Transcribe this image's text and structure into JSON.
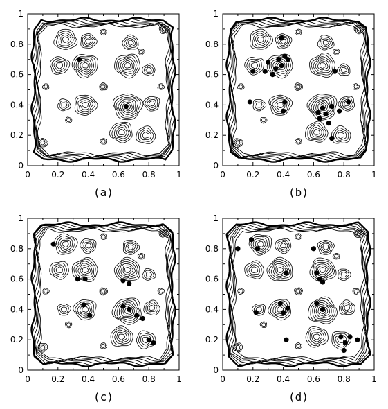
{
  "chart_data": [
    {
      "type": "contour",
      "caption": "(a)",
      "xlim": [
        0,
        1
      ],
      "ylim": [
        0,
        1
      ],
      "xticks": [
        "0",
        "0.2",
        "0.4",
        "0.6",
        "0.8",
        "1"
      ],
      "yticks": [
        "0",
        "0.2",
        "0.4",
        "0.6",
        "0.8",
        "1"
      ],
      "points": [
        {
          "x": 0.34,
          "y": 0.7
        },
        {
          "x": 0.65,
          "y": 0.39
        }
      ]
    },
    {
      "type": "contour",
      "caption": "(b)",
      "xlim": [
        0,
        1
      ],
      "ylim": [
        0,
        1
      ],
      "xticks": [
        "0",
        "0.2",
        "0.4",
        "0.6",
        "0.8",
        "1"
      ],
      "yticks": [
        "0",
        "0.2",
        "0.4",
        "0.6",
        "0.8",
        "1"
      ],
      "points": [
        {
          "x": 0.2,
          "y": 0.62
        },
        {
          "x": 0.28,
          "y": 0.62
        },
        {
          "x": 0.3,
          "y": 0.68
        },
        {
          "x": 0.33,
          "y": 0.6
        },
        {
          "x": 0.35,
          "y": 0.64
        },
        {
          "x": 0.37,
          "y": 0.7
        },
        {
          "x": 0.39,
          "y": 0.66
        },
        {
          "x": 0.39,
          "y": 0.84
        },
        {
          "x": 0.41,
          "y": 0.72
        },
        {
          "x": 0.43,
          "y": 0.7
        },
        {
          "x": 0.18,
          "y": 0.42
        },
        {
          "x": 0.41,
          "y": 0.42
        },
        {
          "x": 0.4,
          "y": 0.36
        },
        {
          "x": 0.63,
          "y": 0.35
        },
        {
          "x": 0.64,
          "y": 0.31
        },
        {
          "x": 0.66,
          "y": 0.38
        },
        {
          "x": 0.68,
          "y": 0.34
        },
        {
          "x": 0.7,
          "y": 0.28
        },
        {
          "x": 0.72,
          "y": 0.39
        },
        {
          "x": 0.77,
          "y": 0.36
        },
        {
          "x": 0.72,
          "y": 0.18
        },
        {
          "x": 0.83,
          "y": 0.42
        },
        {
          "x": 0.74,
          "y": 0.62
        }
      ]
    },
    {
      "type": "contour",
      "caption": "(c)",
      "xlim": [
        0,
        1
      ],
      "ylim": [
        0,
        1
      ],
      "xticks": [
        "0",
        "0.2",
        "0.4",
        "0.6",
        "0.8",
        "1"
      ],
      "yticks": [
        "0",
        "0.2",
        "0.4",
        "0.6",
        "0.8",
        "1"
      ],
      "points": [
        {
          "x": 0.17,
          "y": 0.83
        },
        {
          "x": 0.33,
          "y": 0.6
        },
        {
          "x": 0.38,
          "y": 0.6
        },
        {
          "x": 0.63,
          "y": 0.59
        },
        {
          "x": 0.67,
          "y": 0.57
        },
        {
          "x": 0.37,
          "y": 0.43
        },
        {
          "x": 0.41,
          "y": 0.36
        },
        {
          "x": 0.63,
          "y": 0.42
        },
        {
          "x": 0.67,
          "y": 0.4
        },
        {
          "x": 0.72,
          "y": 0.36
        },
        {
          "x": 0.76,
          "y": 0.34
        },
        {
          "x": 0.8,
          "y": 0.2
        },
        {
          "x": 0.83,
          "y": 0.18
        }
      ]
    },
    {
      "type": "contour",
      "caption": "(d)",
      "xlim": [
        0,
        1
      ],
      "ylim": [
        0,
        1
      ],
      "xticks": [
        "0",
        "0.2",
        "0.4",
        "0.6",
        "0.8",
        "1"
      ],
      "yticks": [
        "0",
        "0.2",
        "0.4",
        "0.6",
        "0.8",
        "1"
      ],
      "points": [
        {
          "x": 0.1,
          "y": 0.8
        },
        {
          "x": 0.19,
          "y": 0.86
        },
        {
          "x": 0.23,
          "y": 0.8
        },
        {
          "x": 0.42,
          "y": 0.64
        },
        {
          "x": 0.64,
          "y": 0.6
        },
        {
          "x": 0.66,
          "y": 0.58
        },
        {
          "x": 0.62,
          "y": 0.64
        },
        {
          "x": 0.6,
          "y": 0.8
        },
        {
          "x": 0.38,
          "y": 0.44
        },
        {
          "x": 0.4,
          "y": 0.38
        },
        {
          "x": 0.43,
          "y": 0.41
        },
        {
          "x": 0.62,
          "y": 0.44
        },
        {
          "x": 0.66,
          "y": 0.4
        },
        {
          "x": 0.22,
          "y": 0.38
        },
        {
          "x": 0.42,
          "y": 0.2
        },
        {
          "x": 0.78,
          "y": 0.22
        },
        {
          "x": 0.81,
          "y": 0.18
        },
        {
          "x": 0.84,
          "y": 0.22
        },
        {
          "x": 0.89,
          "y": 0.2
        },
        {
          "x": 0.8,
          "y": 0.13
        }
      ]
    }
  ]
}
